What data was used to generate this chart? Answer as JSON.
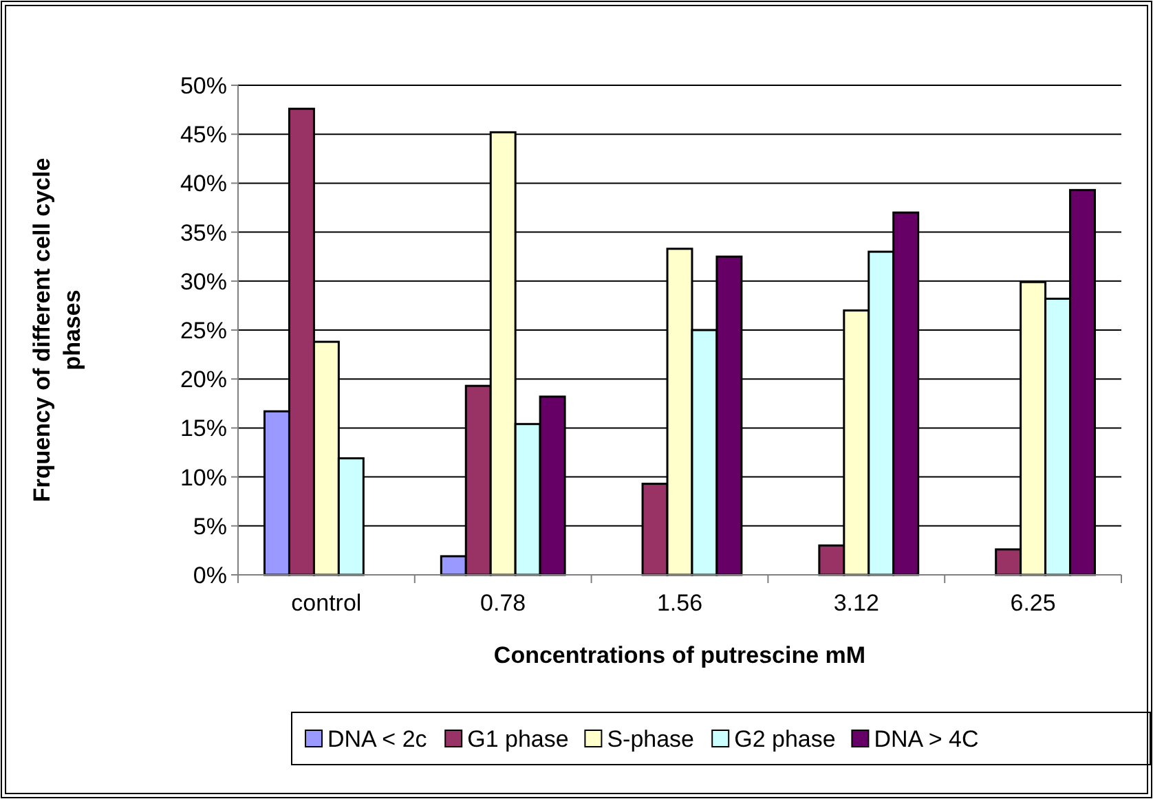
{
  "chart_data": {
    "type": "bar",
    "xlabel": "Concentrations of putrescine mM",
    "ylabel": "Frquency of different cell cycle phases",
    "categories": [
      "control",
      "0.78",
      "1.56",
      "3.12",
      "6.25"
    ],
    "series": [
      {
        "name": "DNA < 2c",
        "color": "#9999ff",
        "values": [
          16.7,
          1.9,
          null,
          null,
          null
        ]
      },
      {
        "name": "G1 phase",
        "color": "#993366",
        "values": [
          47.6,
          19.3,
          9.3,
          3.0,
          2.6
        ]
      },
      {
        "name": "S-phase",
        "color": "#ffffcc",
        "values": [
          23.8,
          45.2,
          33.3,
          27.0,
          29.9
        ]
      },
      {
        "name": "G2 phase",
        "color": "#ccffff",
        "values": [
          11.9,
          15.4,
          25.0,
          33.0,
          28.2
        ]
      },
      {
        "name": "DNA > 4C",
        "color": "#660066",
        "values": [
          null,
          18.2,
          32.5,
          37.0,
          39.3
        ]
      }
    ],
    "ylim": [
      0,
      50
    ],
    "yticks": [
      {
        "value": 0,
        "label": "0%"
      },
      {
        "value": 5,
        "label": "5%"
      },
      {
        "value": 10,
        "label": "10%"
      },
      {
        "value": 15,
        "label": "15%"
      },
      {
        "value": 20,
        "label": "20%"
      },
      {
        "value": 25,
        "label": "25%"
      },
      {
        "value": 30,
        "label": "30%"
      },
      {
        "value": 35,
        "label": "35%"
      },
      {
        "value": 40,
        "label": "40%"
      },
      {
        "value": 45,
        "label": "45%"
      },
      {
        "value": 50,
        "label": "50%"
      }
    ],
    "grid": "y",
    "legend": "bottom"
  }
}
